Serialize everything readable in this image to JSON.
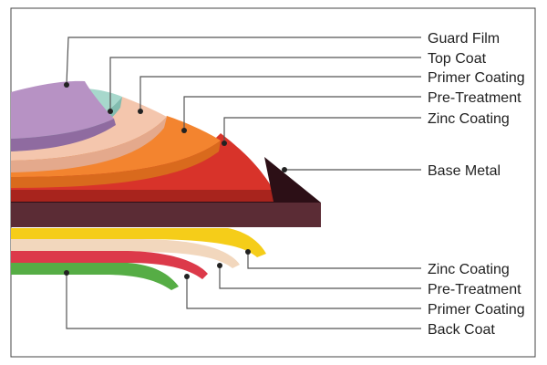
{
  "diagram": {
    "layers_top": [
      {
        "label": "Guard Film",
        "color": "#b792c4"
      },
      {
        "label": "Top Coat",
        "color": "#a7d8cc"
      },
      {
        "label": "Primer Coating",
        "color": "#f4c6ad"
      },
      {
        "label": "Pre-Treatment",
        "color": "#f3842f"
      },
      {
        "label": "Zinc Coating",
        "color": "#d8332a"
      }
    ],
    "base": {
      "label": "Base Metal",
      "color": "#3a1b22"
    },
    "layers_bottom": [
      {
        "label": "Zinc Coating",
        "color": "#f5cd19"
      },
      {
        "label": "Pre-Treatment",
        "color": "#f2d7bd"
      },
      {
        "label": "Primer Coating",
        "color": "#dc3a4a"
      },
      {
        "label": "Back Coat",
        "color": "#56ad45"
      }
    ]
  }
}
